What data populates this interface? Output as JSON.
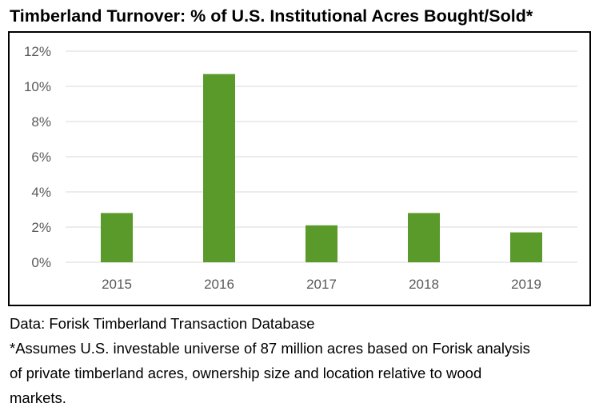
{
  "title": "Timberland Turnover: % of U.S. Institutional Acres Bought/Sold*",
  "source_note": "Data: Forisk Timberland Transaction Database",
  "footnote_lines": [
    "*Assumes U.S. investable universe of 87 million acres based on Forisk analysis",
    "of private timberland acres, ownership size and location relative to wood",
    "markets."
  ],
  "chart_data": {
    "type": "bar",
    "categories": [
      "2015",
      "2016",
      "2017",
      "2018",
      "2019"
    ],
    "values": [
      2.8,
      10.7,
      2.1,
      2.8,
      1.7
    ],
    "ylim": [
      0,
      12
    ],
    "yticks": [
      0,
      2,
      4,
      6,
      8,
      10,
      12
    ],
    "ytick_labels": [
      "0%",
      "2%",
      "4%",
      "6%",
      "8%",
      "10%",
      "12%"
    ],
    "bar_color": "#5a9a2a",
    "grid": true,
    "grid_color": "#d9d9d9"
  }
}
